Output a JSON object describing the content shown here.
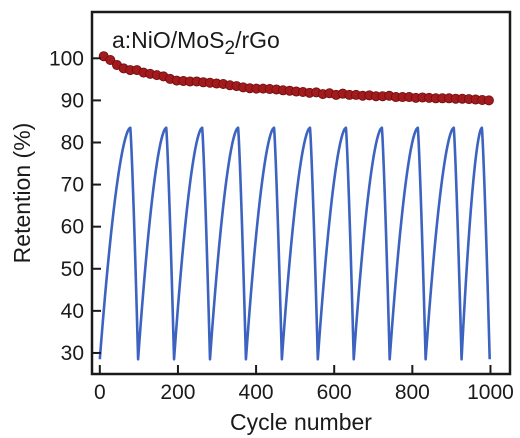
{
  "chart_data": {
    "type": "line",
    "title_prefix": "a:NiO/MoS",
    "title_subscript": "2",
    "title_suffix": "/rGo",
    "xlabel": "Cycle number",
    "ylabel": "Retention (%)",
    "xlim": [
      -20,
      1050
    ],
    "ylim": [
      25,
      111
    ],
    "xticks": [
      0,
      200,
      400,
      600,
      800,
      1000
    ],
    "yticks": [
      30,
      40,
      50,
      60,
      70,
      80,
      90,
      100
    ],
    "series": [
      {
        "color": "#a31a1c",
        "marker": "circle",
        "x": [
          10,
          27,
          44,
          61,
          78,
          95,
          112,
          129,
          146,
          163,
          180,
          197,
          214,
          231,
          248,
          265,
          282,
          299,
          316,
          333,
          350,
          367,
          384,
          401,
          418,
          435,
          452,
          469,
          486,
          503,
          520,
          537,
          554,
          571,
          588,
          605,
          622,
          639,
          656,
          673,
          690,
          707,
          724,
          741,
          758,
          775,
          792,
          809,
          826,
          843,
          860,
          877,
          894,
          911,
          928,
          945,
          962,
          979,
          996
        ],
        "y": [
          100.5,
          99.6,
          98.4,
          97.6,
          97.2,
          97.2,
          96.6,
          96.3,
          96.0,
          95.7,
          95.1,
          94.7,
          94.6,
          94.5,
          94.5,
          94.3,
          94.2,
          94.0,
          93.9,
          93.6,
          93.4,
          93.1,
          92.9,
          92.8,
          92.8,
          92.7,
          92.6,
          92.4,
          92.3,
          92.1,
          92.0,
          91.8,
          91.9,
          91.5,
          91.7,
          91.3,
          91.6,
          91.3,
          91.3,
          91.1,
          91.2,
          91.0,
          91.0,
          91.1,
          90.8,
          90.8,
          90.8,
          90.6,
          90.7,
          90.6,
          90.5,
          90.5,
          90.5,
          90.4,
          90.4,
          90.3,
          90.2,
          90.1,
          90.0
        ]
      },
      {
        "color": "#3d63c0",
        "marker": "none",
        "cycles": [
          {
            "start": 0,
            "peak": 78,
            "end": 98
          },
          {
            "start": 98,
            "peak": 170,
            "end": 190
          },
          {
            "start": 190,
            "peak": 262,
            "end": 282
          },
          {
            "start": 282,
            "peak": 354,
            "end": 374
          },
          {
            "start": 374,
            "peak": 446,
            "end": 466
          },
          {
            "start": 466,
            "peak": 538,
            "end": 558
          },
          {
            "start": 558,
            "peak": 630,
            "end": 650
          },
          {
            "start": 650,
            "peak": 722,
            "end": 742
          },
          {
            "start": 742,
            "peak": 814,
            "end": 834
          },
          {
            "start": 834,
            "peak": 906,
            "end": 926
          },
          {
            "start": 926,
            "peak": 978,
            "end": 998
          }
        ],
        "ymin": 28.5,
        "ymax": 83.5
      }
    ]
  }
}
